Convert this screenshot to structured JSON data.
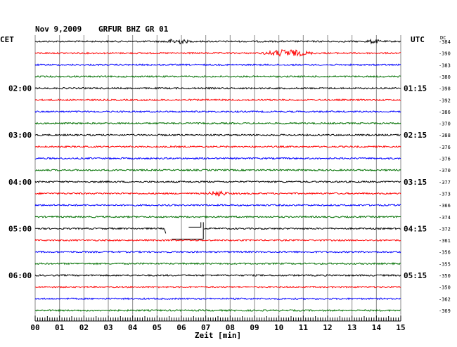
{
  "header": {
    "date": "Nov 9,2009",
    "station": "GRFUR BHZ GR 01"
  },
  "left_timezone": "CET",
  "right_timezone": "UTC",
  "dc_label": "DC",
  "colors": [
    "#000000",
    "#ff0000",
    "#0000ff",
    "#007000"
  ],
  "chart_data": {
    "type": "line",
    "title": "",
    "xlabel": "Zeit [min]",
    "xlim": [
      0,
      15
    ],
    "x_ticks": [
      "00",
      "01",
      "02",
      "03",
      "04",
      "05",
      "06",
      "07",
      "08",
      "09",
      "10",
      "11",
      "12",
      "13",
      "14",
      "15"
    ],
    "left_time_labels": [
      {
        "row": 4,
        "label": "02:00"
      },
      {
        "row": 8,
        "label": "03:00"
      },
      {
        "row": 12,
        "label": "04:00"
      },
      {
        "row": 16,
        "label": "05:00"
      },
      {
        "row": 20,
        "label": "06:00"
      }
    ],
    "right_time_labels": [
      {
        "row": 4,
        "label": "01:15"
      },
      {
        "row": 8,
        "label": "02:15"
      },
      {
        "row": 12,
        "label": "03:15"
      },
      {
        "row": 16,
        "label": "04:15"
      },
      {
        "row": 20,
        "label": "05:15"
      }
    ],
    "dc_offsets": [
      -384,
      -390,
      -383,
      -380,
      -398,
      -392,
      -386,
      -370,
      -388,
      -376,
      -376,
      -370,
      -377,
      -373,
      -366,
      -374,
      -372,
      -361,
      -356,
      -355,
      -350,
      -350,
      -362,
      -369
    ],
    "events": [
      {
        "row": 0,
        "from_min": 5.2,
        "to_min": 6.4,
        "amplitude": "medium"
      },
      {
        "row": 0,
        "from_min": 13.5,
        "to_min": 14.3,
        "amplitude": "small"
      },
      {
        "row": 1,
        "from_min": 9.2,
        "to_min": 11.5,
        "amplitude": "large"
      },
      {
        "row": 13,
        "from_min": 7.0,
        "to_min": 8.0,
        "amplitude": "medium"
      }
    ],
    "gaps": [
      {
        "row": 16,
        "from_min": 5.3,
        "to_min": 6.9
      }
    ]
  }
}
